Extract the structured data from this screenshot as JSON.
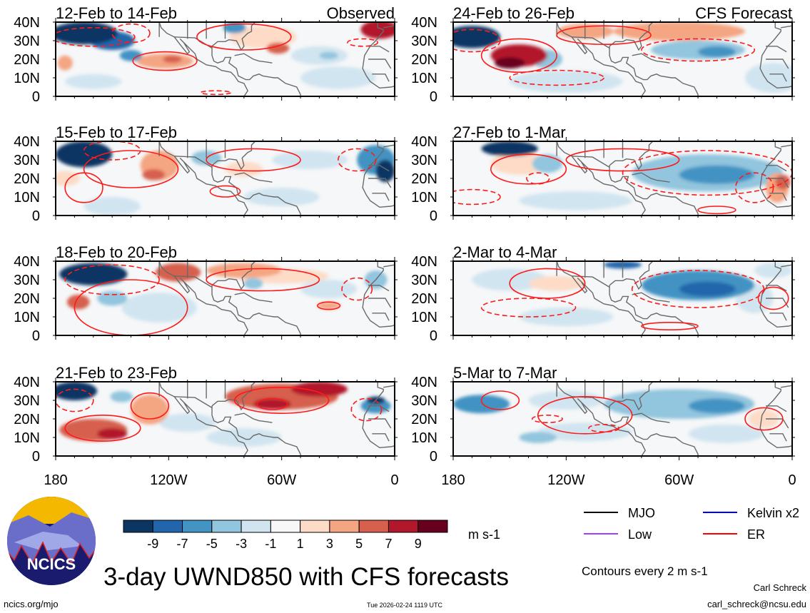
{
  "chart_data": {
    "type": "heatmap",
    "title": "3-day UWND850 with CFS forecasts",
    "variable_units": "m s-1",
    "contour_note": "Contours every 2 m s-1",
    "lat_ticks": [
      "40N",
      "30N",
      "20N",
      "10N",
      "0"
    ],
    "lon_ticks": [
      "180",
      "120W",
      "60W",
      "0"
    ],
    "lon_tick_values": [
      180,
      120,
      60,
      0
    ],
    "lat_range": [
      0,
      40
    ],
    "lon_range_west": [
      180,
      0
    ],
    "colorbar": {
      "labels": [
        "-9",
        "-7",
        "-5",
        "-3",
        "-1",
        "1",
        "3",
        "5",
        "7",
        "9"
      ],
      "colors": [
        "#0b3563",
        "#2166ac",
        "#4393c3",
        "#92c5de",
        "#d1e5f0",
        "#f7f7f7",
        "#fddbc7",
        "#f4a582",
        "#d6604d",
        "#b2182b",
        "#67001f"
      ]
    },
    "column_labels": [
      "Observed",
      "CFS Forecast"
    ],
    "panels": [
      {
        "title": "12-Feb to 14-Feb",
        "col": 0,
        "row": 0,
        "shade": [
          [
            165,
            34,
            18,
            6,
            -11
          ],
          [
            150,
            30,
            12,
            5,
            -7
          ],
          [
            140,
            22,
            6,
            3,
            -5
          ],
          [
            175,
            18,
            4,
            4,
            4
          ],
          [
            122,
            19,
            15,
            4,
            4
          ],
          [
            118,
            20,
            5,
            2,
            7
          ],
          [
            70,
            32,
            18,
            6,
            3
          ],
          [
            62,
            26,
            6,
            3,
            6
          ],
          [
            8,
            36,
            10,
            5,
            8
          ],
          [
            40,
            22,
            15,
            5,
            -2
          ],
          [
            35,
            22,
            5,
            2,
            -4
          ],
          [
            85,
            37,
            6,
            3,
            -5
          ],
          [
            30,
            10,
            20,
            6,
            -2
          ],
          [
            160,
            8,
            15,
            4,
            -2
          ]
        ],
        "contours": [
          [
            122,
            19,
            17,
            5,
            0
          ],
          [
            80,
            32,
            25,
            7,
            0
          ],
          [
            160,
            32,
            22,
            5,
            1
          ],
          [
            140,
            34,
            10,
            5,
            1
          ],
          [
            17,
            29,
            8,
            2,
            1
          ],
          [
            95,
            2,
            8,
            1,
            1
          ]
        ]
      },
      {
        "title": "15-Feb to 17-Feb",
        "col": 0,
        "row": 1,
        "shade": [
          [
            165,
            33,
            15,
            7,
            -11
          ],
          [
            125,
            27,
            10,
            8,
            5
          ],
          [
            128,
            22,
            6,
            3,
            7
          ],
          [
            175,
            20,
            8,
            4,
            3
          ],
          [
            100,
            31,
            8,
            4,
            -3
          ],
          [
            80,
            25,
            10,
            4,
            3
          ],
          [
            45,
            30,
            20,
            5,
            -2
          ],
          [
            10,
            30,
            10,
            8,
            -5
          ],
          [
            5,
            24,
            5,
            6,
            -9
          ],
          [
            150,
            5,
            15,
            5,
            -2
          ],
          [
            60,
            10,
            20,
            5,
            -1
          ]
        ],
        "contours": [
          [
            140,
            25,
            25,
            10,
            0
          ],
          [
            75,
            30,
            25,
            6,
            0
          ],
          [
            150,
            35,
            15,
            5,
            1
          ],
          [
            165,
            15,
            10,
            8,
            0
          ],
          [
            20,
            30,
            10,
            6,
            1
          ],
          [
            90,
            13,
            8,
            3,
            0
          ]
        ]
      },
      {
        "title": "18-Feb to 20-Feb",
        "col": 0,
        "row": 2,
        "shade": [
          [
            160,
            33,
            18,
            6,
            -11
          ],
          [
            168,
            18,
            6,
            4,
            6
          ],
          [
            115,
            34,
            12,
            5,
            7
          ],
          [
            80,
            35,
            20,
            4,
            4
          ],
          [
            60,
            32,
            25,
            4,
            3
          ],
          [
            75,
            28,
            5,
            3,
            -3
          ],
          [
            35,
            25,
            15,
            5,
            -2
          ],
          [
            10,
            30,
            6,
            5,
            -4
          ],
          [
            125,
            15,
            20,
            8,
            -2
          ],
          [
            150,
            20,
            8,
            4,
            -3
          ],
          [
            35,
            16,
            6,
            2,
            4
          ]
        ],
        "contours": [
          [
            150,
            30,
            25,
            8,
            1
          ],
          [
            140,
            15,
            30,
            15,
            0
          ],
          [
            70,
            30,
            30,
            6,
            0
          ],
          [
            20,
            25,
            8,
            6,
            1
          ],
          [
            35,
            16,
            6,
            2,
            0
          ]
        ]
      },
      {
        "title": "21-Feb to 23-Feb",
        "col": 0,
        "row": 3,
        "shade": [
          [
            170,
            35,
            12,
            5,
            -11
          ],
          [
            160,
            14,
            18,
            6,
            7
          ],
          [
            150,
            12,
            8,
            3,
            9
          ],
          [
            130,
            25,
            10,
            8,
            4
          ],
          [
            60,
            32,
            30,
            7,
            6
          ],
          [
            65,
            28,
            10,
            3,
            8
          ],
          [
            40,
            36,
            15,
            4,
            9
          ],
          [
            110,
            18,
            15,
            5,
            -2
          ],
          [
            10,
            27,
            8,
            4,
            -6
          ],
          [
            10,
            30,
            5,
            2,
            -9
          ],
          [
            80,
            10,
            20,
            5,
            -2
          ],
          [
            145,
            32,
            6,
            3,
            -3
          ]
        ],
        "contours": [
          [
            155,
            15,
            20,
            7,
            0
          ],
          [
            130,
            27,
            10,
            7,
            0
          ],
          [
            60,
            30,
            25,
            7,
            0
          ],
          [
            65,
            28,
            8,
            3,
            0
          ],
          [
            170,
            30,
            10,
            6,
            1
          ],
          [
            15,
            25,
            8,
            6,
            1
          ]
        ]
      },
      {
        "title": "24-Feb to 26-Feb",
        "col": 1,
        "row": 0,
        "shade": [
          [
            170,
            32,
            15,
            6,
            -10
          ],
          [
            145,
            22,
            15,
            6,
            8
          ],
          [
            150,
            18,
            8,
            3,
            10
          ],
          [
            110,
            35,
            15,
            4,
            4
          ],
          [
            60,
            35,
            35,
            5,
            4
          ],
          [
            50,
            25,
            25,
            5,
            -3
          ],
          [
            40,
            24,
            10,
            3,
            -5
          ],
          [
            130,
            20,
            8,
            5,
            -3
          ],
          [
            120,
            8,
            30,
            6,
            -2
          ],
          [
            10,
            10,
            15,
            8,
            -1
          ]
        ],
        "contours": [
          [
            145,
            22,
            20,
            9,
            0
          ],
          [
            100,
            33,
            25,
            5,
            0
          ],
          [
            50,
            25,
            30,
            6,
            1
          ],
          [
            170,
            30,
            15,
            6,
            1
          ],
          [
            125,
            10,
            25,
            4,
            1
          ]
        ]
      },
      {
        "title": "27-Feb to 1-Mar",
        "col": 1,
        "row": 1,
        "shade": [
          [
            150,
            36,
            15,
            4,
            -11
          ],
          [
            45,
            23,
            40,
            10,
            -4
          ],
          [
            40,
            22,
            20,
            5,
            -6
          ],
          [
            145,
            28,
            15,
            6,
            3
          ],
          [
            8,
            15,
            6,
            8,
            5
          ],
          [
            5,
            18,
            4,
            4,
            7
          ],
          [
            130,
            28,
            8,
            5,
            -3
          ],
          [
            115,
            8,
            30,
            5,
            -2
          ]
        ],
        "contours": [
          [
            45,
            23,
            45,
            12,
            1
          ],
          [
            140,
            25,
            20,
            8,
            0
          ],
          [
            90,
            30,
            30,
            6,
            0
          ],
          [
            135,
            20,
            6,
            3,
            1
          ],
          [
            170,
            10,
            15,
            4,
            1
          ],
          [
            20,
            15,
            10,
            8,
            1
          ],
          [
            40,
            3,
            10,
            2,
            0
          ]
        ]
      },
      {
        "title": "2-Mar to 4-Mar",
        "col": 1,
        "row": 2,
        "shade": [
          [
            50,
            27,
            30,
            8,
            -5
          ],
          [
            45,
            25,
            15,
            4,
            -7
          ],
          [
            90,
            38,
            10,
            2,
            -7
          ],
          [
            150,
            30,
            20,
            6,
            -2
          ],
          [
            125,
            28,
            15,
            4,
            3
          ],
          [
            120,
            10,
            25,
            5,
            -2
          ],
          [
            20,
            20,
            10,
            8,
            -2
          ],
          [
            10,
            35,
            10,
            4,
            -1
          ]
        ],
        "contours": [
          [
            130,
            28,
            20,
            8,
            0
          ],
          [
            50,
            25,
            35,
            10,
            1
          ],
          [
            140,
            15,
            25,
            5,
            1
          ],
          [
            10,
            20,
            8,
            6,
            0
          ],
          [
            65,
            5,
            15,
            2,
            0
          ]
        ]
      },
      {
        "title": "5-Mar to 7-Mar",
        "col": 1,
        "row": 3,
        "shade": [
          [
            165,
            28,
            15,
            5,
            -5
          ],
          [
            60,
            28,
            40,
            8,
            -4
          ],
          [
            40,
            27,
            15,
            4,
            -5
          ],
          [
            120,
            30,
            20,
            5,
            -1
          ],
          [
            110,
            13,
            25,
            5,
            -2
          ],
          [
            35,
            12,
            20,
            5,
            -2
          ],
          [
            15,
            20,
            8,
            5,
            3
          ],
          [
            135,
            10,
            10,
            3,
            -3
          ]
        ],
        "contours": [
          [
            155,
            30,
            10,
            5,
            0
          ],
          [
            110,
            22,
            25,
            10,
            0
          ],
          [
            15,
            20,
            10,
            6,
            0
          ],
          [
            100,
            15,
            8,
            2,
            1
          ],
          [
            130,
            20,
            8,
            2,
            1
          ]
        ]
      }
    ],
    "legend": [
      {
        "label": "MJO",
        "color": "#000000"
      },
      {
        "label": "Kelvin x2",
        "color": "#0000ff"
      },
      {
        "label": "Low",
        "color": "#a040ff"
      },
      {
        "label": "ER",
        "color": "#ff0000"
      }
    ]
  },
  "logo_text": "NCICS",
  "footer": {
    "url": "ncics.org/mjo",
    "timestamp": "Tue 2026-02-24 1119 UTC",
    "author": "Carl Schreck",
    "email": "carl_schreck@ncsu.edu"
  }
}
